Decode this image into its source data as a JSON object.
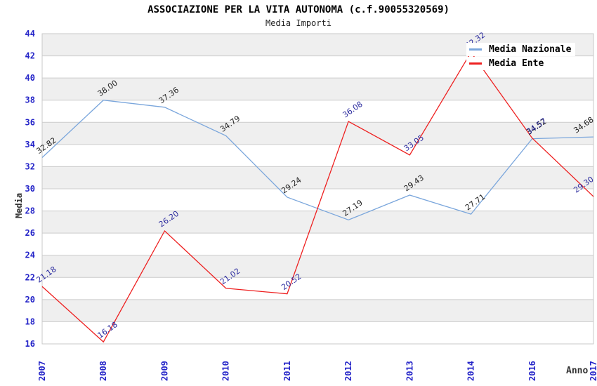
{
  "chart_data": {
    "type": "line",
    "title": "ASSOCIAZIONE PER LA VITA AUTONOMA (c.f.90055320569)",
    "subtitle": "Media Importi",
    "xlabel": "Anno",
    "ylabel": "Media",
    "categories": [
      "2007",
      "2008",
      "2009",
      "2010",
      "2011",
      "2012",
      "2013",
      "2014",
      "2016",
      "2017"
    ],
    "series": [
      {
        "name": "Media Nazionale",
        "color": "#7aa6dc",
        "label_color": "#222222",
        "values": [
          32.82,
          38.0,
          37.36,
          34.79,
          29.24,
          27.19,
          29.43,
          27.71,
          34.52,
          34.68
        ]
      },
      {
        "name": "Media Ente",
        "color": "#ee2020",
        "label_color": "#2a2a9e",
        "values": [
          21.18,
          16.18,
          26.2,
          21.02,
          20.52,
          36.08,
          33.05,
          42.32,
          34.57,
          29.3
        ]
      }
    ],
    "ylim": [
      16,
      44
    ],
    "ytick_step": 2,
    "grid": "horizontal-bands",
    "legend_position": "top-right",
    "colors": {
      "tick_label": "#2424c8",
      "band_gray": "#efefef",
      "band_white": "#ffffff",
      "grid_line": "#cccccc",
      "border": "#c9c9c9",
      "title": "#000000",
      "axis_label": "#333333"
    }
  }
}
